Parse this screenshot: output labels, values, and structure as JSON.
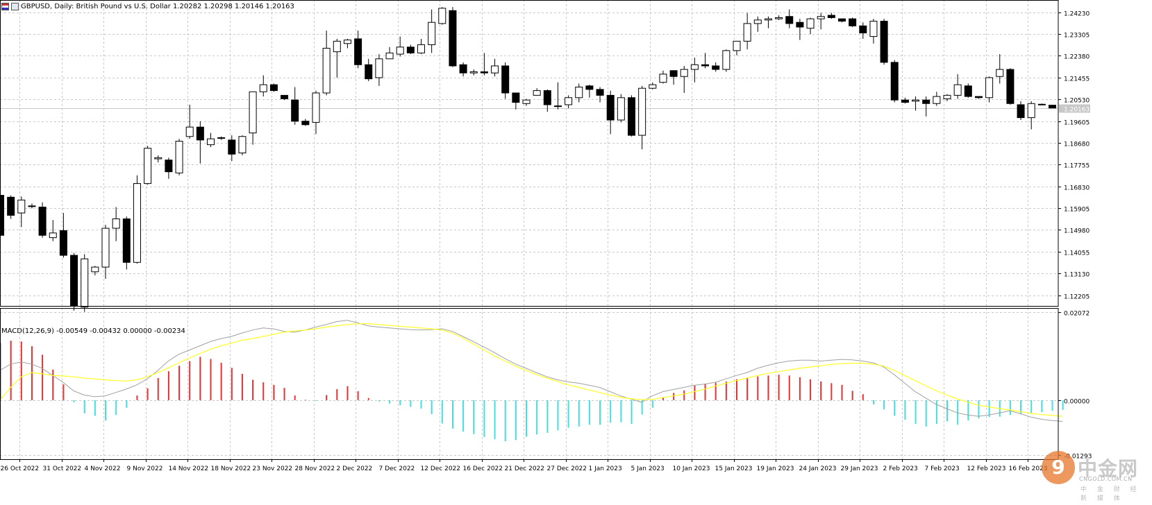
{
  "window": {
    "title": "GBPUSD, Daily:  British Pound vs U.S. Dollar  1.20282 1.20298 1.20146 1.20163",
    "symbol_icon": "currency-pair-icon",
    "chart_icon": "chart-window-icon"
  },
  "price_panel": {
    "y_axis_ticks": [
      "1.24230",
      "1.23305",
      "1.22380",
      "1.21455",
      "1.20530",
      "1.19605",
      "1.18680",
      "1.17755",
      "1.16830",
      "1.15905",
      "1.14980",
      "1.14055",
      "1.13130",
      "1.12205"
    ],
    "current_price_label": "1.20163"
  },
  "macd_panel": {
    "label": "MACD(12,26,9) -0.00549 -0.00432 0.00000 -0.00234",
    "y_axis_ticks": [
      "0.02072",
      "0.00000",
      "-0.01293"
    ]
  },
  "x_axis": {
    "date_labels": [
      "26 Oct 2022",
      "31 Oct 2022",
      "4 Nov 2022",
      "9 Nov 2022",
      "14 Nov 2022",
      "18 Nov 2022",
      "23 Nov 2022",
      "28 Nov 2022",
      "2 Dec 2022",
      "7 Dec 2022",
      "12 Dec 2022",
      "16 Dec 2022",
      "21 Dec 2022",
      "27 Dec 2022",
      "1 Jan 2023",
      "5 Jan 2023",
      "10 Jan 2023",
      "15 Jan 2023",
      "19 Jan 2023",
      "24 Jan 2023",
      "29 Jan 2023",
      "2 Feb 2023",
      "7 Feb 2023",
      "12 Feb 2023",
      "16 Feb 2023"
    ]
  },
  "watermark": {
    "logo_glyph": "9",
    "brand": "中金网",
    "domain": "CNGOLD.COM.CN",
    "tagline": "中 金 财 经 新 媒 体"
  },
  "colors": {
    "bull_fill": "#ffffff",
    "bear_fill": "#000000",
    "macd_hist_pos": "#e83030",
    "macd_hist_neg": "#44dde0",
    "macd_line": "#a0a0a0",
    "signal_line": "#ffff20",
    "grid": "#c8c8c8"
  },
  "chart_data": {
    "type": "candlestick",
    "title": "GBPUSD, Daily",
    "ylim": [
      1.1175,
      1.2475
    ],
    "candles": [
      {
        "o": 1.1645,
        "h": 1.1647,
        "l": 1.1475,
        "c": 1.1475
      },
      {
        "o": 1.1637,
        "h": 1.1645,
        "l": 1.1545,
        "c": 1.156
      },
      {
        "o": 1.157,
        "h": 1.164,
        "l": 1.151,
        "c": 1.1625
      },
      {
        "o": 1.1597,
        "h": 1.161,
        "l": 1.159,
        "c": 1.16
      },
      {
        "o": 1.1595,
        "h": 1.1615,
        "l": 1.1465,
        "c": 1.1475
      },
      {
        "o": 1.1465,
        "h": 1.154,
        "l": 1.145,
        "c": 1.1485
      },
      {
        "o": 1.1495,
        "h": 1.157,
        "l": 1.138,
        "c": 1.139
      },
      {
        "o": 1.139,
        "h": 1.14,
        "l": 1.1155,
        "c": 1.1175
      },
      {
        "o": 1.117,
        "h": 1.1395,
        "l": 1.115,
        "c": 1.1375
      },
      {
        "o": 1.132,
        "h": 1.1345,
        "l": 1.1305,
        "c": 1.134
      },
      {
        "o": 1.134,
        "h": 1.152,
        "l": 1.129,
        "c": 1.1505
      },
      {
        "o": 1.1505,
        "h": 1.1595,
        "l": 1.145,
        "c": 1.1545
      },
      {
        "o": 1.1545,
        "h": 1.1555,
        "l": 1.133,
        "c": 1.136
      },
      {
        "o": 1.136,
        "h": 1.173,
        "l": 1.1355,
        "c": 1.1695
      },
      {
        "o": 1.1695,
        "h": 1.1855,
        "l": 1.169,
        "c": 1.1845
      },
      {
        "o": 1.18,
        "h": 1.1815,
        "l": 1.1785,
        "c": 1.1805
      },
      {
        "o": 1.1795,
        "h": 1.1805,
        "l": 1.1715,
        "c": 1.1745
      },
      {
        "o": 1.174,
        "h": 1.1885,
        "l": 1.173,
        "c": 1.1875
      },
      {
        "o": 1.1895,
        "h": 1.203,
        "l": 1.1885,
        "c": 1.1935
      },
      {
        "o": 1.1935,
        "h": 1.196,
        "l": 1.178,
        "c": 1.188
      },
      {
        "o": 1.186,
        "h": 1.191,
        "l": 1.185,
        "c": 1.1885
      },
      {
        "o": 1.189,
        "h": 1.1895,
        "l": 1.188,
        "c": 1.189
      },
      {
        "o": 1.188,
        "h": 1.19,
        "l": 1.179,
        "c": 1.182
      },
      {
        "o": 1.1825,
        "h": 1.19,
        "l": 1.1815,
        "c": 1.1895
      },
      {
        "o": 1.191,
        "h": 1.2085,
        "l": 1.186,
        "c": 1.2085
      },
      {
        "o": 1.2085,
        "h": 1.2155,
        "l": 1.2065,
        "c": 1.2115
      },
      {
        "o": 1.2115,
        "h": 1.212,
        "l": 1.2085,
        "c": 1.209
      },
      {
        "o": 1.207,
        "h": 1.207,
        "l": 1.205,
        "c": 1.2055
      },
      {
        "o": 1.205,
        "h": 1.2105,
        "l": 1.1945,
        "c": 1.196
      },
      {
        "o": 1.196,
        "h": 1.197,
        "l": 1.194,
        "c": 1.1945
      },
      {
        "o": 1.1955,
        "h": 1.209,
        "l": 1.1905,
        "c": 1.208
      },
      {
        "o": 1.208,
        "h": 1.2345,
        "l": 1.207,
        "c": 1.227
      },
      {
        "o": 1.2255,
        "h": 1.231,
        "l": 1.2145,
        "c": 1.23
      },
      {
        "o": 1.229,
        "h": 1.231,
        "l": 1.227,
        "c": 1.2305
      },
      {
        "o": 1.231,
        "h": 1.2345,
        "l": 1.2185,
        "c": 1.22
      },
      {
        "o": 1.22,
        "h": 1.2225,
        "l": 1.213,
        "c": 1.214
      },
      {
        "o": 1.2145,
        "h": 1.2245,
        "l": 1.211,
        "c": 1.2225
      },
      {
        "o": 1.2225,
        "h": 1.2275,
        "l": 1.2225,
        "c": 1.225
      },
      {
        "o": 1.2245,
        "h": 1.232,
        "l": 1.2235,
        "c": 1.2275
      },
      {
        "o": 1.2275,
        "h": 1.2285,
        "l": 1.2245,
        "c": 1.225
      },
      {
        "o": 1.225,
        "h": 1.231,
        "l": 1.2245,
        "c": 1.2285
      },
      {
        "o": 1.2285,
        "h": 1.2435,
        "l": 1.225,
        "c": 1.238
      },
      {
        "o": 1.2375,
        "h": 1.2445,
        "l": 1.237,
        "c": 1.244
      },
      {
        "o": 1.243,
        "h": 1.2445,
        "l": 1.219,
        "c": 1.2195
      },
      {
        "o": 1.22,
        "h": 1.221,
        "l": 1.215,
        "c": 1.2165
      },
      {
        "o": 1.2165,
        "h": 1.218,
        "l": 1.2155,
        "c": 1.217
      },
      {
        "o": 1.217,
        "h": 1.225,
        "l": 1.2155,
        "c": 1.2165
      },
      {
        "o": 1.2165,
        "h": 1.2225,
        "l": 1.215,
        "c": 1.2195
      },
      {
        "o": 1.2195,
        "h": 1.221,
        "l": 1.2055,
        "c": 1.208
      },
      {
        "o": 1.208,
        "h": 1.208,
        "l": 1.201,
        "c": 1.204
      },
      {
        "o": 1.2035,
        "h": 1.2055,
        "l": 1.2025,
        "c": 1.205
      },
      {
        "o": 1.207,
        "h": 1.21,
        "l": 1.207,
        "c": 1.209
      },
      {
        "o": 1.209,
        "h": 1.2095,
        "l": 1.2,
        "c": 1.203
      },
      {
        "o": 1.2025,
        "h": 1.2125,
        "l": 1.201,
        "c": 1.2025
      },
      {
        "o": 1.203,
        "h": 1.207,
        "l": 1.2015,
        "c": 1.206
      },
      {
        "o": 1.206,
        "h": 1.212,
        "l": 1.204,
        "c": 1.2105
      },
      {
        "o": 1.211,
        "h": 1.2115,
        "l": 1.206,
        "c": 1.2095
      },
      {
        "o": 1.2095,
        "h": 1.2105,
        "l": 1.204,
        "c": 1.207
      },
      {
        "o": 1.207,
        "h": 1.209,
        "l": 1.1905,
        "c": 1.1965
      },
      {
        "o": 1.1965,
        "h": 1.2075,
        "l": 1.1955,
        "c": 1.206
      },
      {
        "o": 1.206,
        "h": 1.207,
        "l": 1.1895,
        "c": 1.19
      },
      {
        "o": 1.19,
        "h": 1.211,
        "l": 1.184,
        "c": 1.21
      },
      {
        "o": 1.21,
        "h": 1.2125,
        "l": 1.2095,
        "c": 1.2115
      },
      {
        "o": 1.2125,
        "h": 1.2175,
        "l": 1.212,
        "c": 1.216
      },
      {
        "o": 1.2175,
        "h": 1.2175,
        "l": 1.2115,
        "c": 1.215
      },
      {
        "o": 1.215,
        "h": 1.2195,
        "l": 1.208,
        "c": 1.218
      },
      {
        "o": 1.218,
        "h": 1.223,
        "l": 1.2125,
        "c": 1.22
      },
      {
        "o": 1.22,
        "h": 1.225,
        "l": 1.2185,
        "c": 1.2195
      },
      {
        "o": 1.2195,
        "h": 1.221,
        "l": 1.217,
        "c": 1.218
      },
      {
        "o": 1.218,
        "h": 1.2265,
        "l": 1.217,
        "c": 1.226
      },
      {
        "o": 1.226,
        "h": 1.23,
        "l": 1.224,
        "c": 1.23
      },
      {
        "o": 1.23,
        "h": 1.242,
        "l": 1.2265,
        "c": 1.2375
      },
      {
        "o": 1.2375,
        "h": 1.2405,
        "l": 1.234,
        "c": 1.239
      },
      {
        "o": 1.239,
        "h": 1.2405,
        "l": 1.2355,
        "c": 1.2395
      },
      {
        "o": 1.2395,
        "h": 1.241,
        "l": 1.239,
        "c": 1.24
      },
      {
        "o": 1.2405,
        "h": 1.2435,
        "l": 1.2355,
        "c": 1.2375
      },
      {
        "o": 1.238,
        "h": 1.2395,
        "l": 1.2305,
        "c": 1.236
      },
      {
        "o": 1.2355,
        "h": 1.24,
        "l": 1.233,
        "c": 1.2395
      },
      {
        "o": 1.2395,
        "h": 1.242,
        "l": 1.235,
        "c": 1.2405
      },
      {
        "o": 1.241,
        "h": 1.242,
        "l": 1.2395,
        "c": 1.24
      },
      {
        "o": 1.2395,
        "h": 1.2395,
        "l": 1.238,
        "c": 1.2385
      },
      {
        "o": 1.2395,
        "h": 1.24,
        "l": 1.236,
        "c": 1.2365
      },
      {
        "o": 1.2365,
        "h": 1.238,
        "l": 1.231,
        "c": 1.2335
      },
      {
        "o": 1.232,
        "h": 1.2395,
        "l": 1.229,
        "c": 1.2385
      },
      {
        "o": 1.2385,
        "h": 1.2395,
        "l": 1.22,
        "c": 1.221
      },
      {
        "o": 1.221,
        "h": 1.222,
        "l": 1.204,
        "c": 1.205
      },
      {
        "o": 1.205,
        "h": 1.206,
        "l": 1.2035,
        "c": 1.204
      },
      {
        "o": 1.2045,
        "h": 1.2065,
        "l": 1.2005,
        "c": 1.205
      },
      {
        "o": 1.205,
        "h": 1.2065,
        "l": 1.198,
        "c": 1.2035
      },
      {
        "o": 1.2035,
        "h": 1.2085,
        "l": 1.2025,
        "c": 1.2065
      },
      {
        "o": 1.2055,
        "h": 1.2075,
        "l": 1.2045,
        "c": 1.207
      },
      {
        "o": 1.207,
        "h": 1.216,
        "l": 1.2055,
        "c": 1.2115
      },
      {
        "o": 1.211,
        "h": 1.212,
        "l": 1.206,
        "c": 1.2065
      },
      {
        "o": 1.2065,
        "h": 1.2065,
        "l": 1.2055,
        "c": 1.206
      },
      {
        "o": 1.206,
        "h": 1.215,
        "l": 1.204,
        "c": 1.2145
      },
      {
        "o": 1.215,
        "h": 1.2245,
        "l": 1.212,
        "c": 1.218
      },
      {
        "o": 1.218,
        "h": 1.2185,
        "l": 1.203,
        "c": 1.2035
      },
      {
        "o": 1.203,
        "h": 1.2045,
        "l": 1.1965,
        "c": 1.1975
      },
      {
        "o": 1.1975,
        "h": 1.2045,
        "l": 1.1925,
        "c": 1.2035
      },
      {
        "o": 1.203,
        "h": 1.2035,
        "l": 1.2028,
        "c": 1.2032
      },
      {
        "o": 1.2028,
        "h": 1.203,
        "l": 1.2015,
        "c": 1.2016
      }
    ],
    "macd_histogram": [
      0.0135,
      0.014,
      0.0138,
      0.0127,
      0.0107,
      0.0072,
      0.0037,
      -0.0005,
      -0.0031,
      -0.0037,
      -0.0048,
      -0.0035,
      -0.0018,
      0.0011,
      0.0028,
      0.0052,
      0.0068,
      0.0081,
      0.0092,
      0.0102,
      0.0097,
      0.0088,
      0.0076,
      0.0062,
      0.0048,
      0.0042,
      0.0036,
      0.0029,
      0.0011,
      0.0001,
      -0.0002,
      0.0012,
      0.0026,
      0.0033,
      0.0021,
      0.0005,
      -0.0003,
      -0.0008,
      -0.0012,
      -0.0016,
      -0.002,
      -0.0033,
      -0.0055,
      -0.0067,
      -0.0074,
      -0.008,
      -0.0087,
      -0.0092,
      -0.0097,
      -0.0094,
      -0.0086,
      -0.0081,
      -0.0077,
      -0.0071,
      -0.0065,
      -0.0062,
      -0.0058,
      -0.0058,
      -0.0053,
      -0.0052,
      -0.0056,
      -0.0034,
      -0.0018,
      0.0006,
      0.0017,
      0.0023,
      0.0034,
      0.0039,
      0.0041,
      0.0044,
      0.0049,
      0.0053,
      0.0056,
      0.0058,
      0.006,
      0.0058,
      0.0054,
      0.0049,
      0.0044,
      0.004,
      0.0036,
      0.0022,
      0.0014,
      -0.001,
      -0.0022,
      -0.0037,
      -0.0046,
      -0.0056,
      -0.0062,
      -0.0056,
      -0.005,
      -0.0058,
      -0.0048,
      -0.0043,
      -0.004,
      -0.0039,
      -0.0035,
      -0.0033,
      -0.003,
      -0.0028,
      -0.0025,
      -0.0023
    ],
    "macd_line": [
      0.007,
      0.0085,
      0.009,
      0.0085,
      0.0075,
      0.0058,
      0.0042,
      0.0022,
      0.0012,
      0.0008,
      0.001,
      0.0018,
      0.0026,
      0.0036,
      0.005,
      0.007,
      0.0092,
      0.0108,
      0.0118,
      0.0128,
      0.0138,
      0.0145,
      0.015,
      0.0158,
      0.0165,
      0.017,
      0.0168,
      0.0162,
      0.016,
      0.0165,
      0.0172,
      0.0178,
      0.0185,
      0.0188,
      0.0182,
      0.0175,
      0.0172,
      0.017,
      0.0168,
      0.0166,
      0.0165,
      0.0166,
      0.0168,
      0.0162,
      0.015,
      0.0138,
      0.0125,
      0.0112,
      0.0098,
      0.0085,
      0.0075,
      0.0065,
      0.0055,
      0.0048,
      0.0043,
      0.004,
      0.0035,
      0.003,
      0.002,
      0.001,
      0.0002,
      -0.0005,
      0.001,
      0.002,
      0.0025,
      0.003,
      0.0035,
      0.0038,
      0.0042,
      0.005,
      0.0058,
      0.0065,
      0.0075,
      0.0082,
      0.0088,
      0.0092,
      0.0094,
      0.0094,
      0.0092,
      0.0094,
      0.0096,
      0.0095,
      0.0092,
      0.0088,
      0.0078,
      0.006,
      0.004,
      0.002,
      0.0005,
      -0.001,
      -0.002,
      -0.003,
      -0.0035,
      -0.0038,
      -0.0035,
      -0.003,
      -0.0025,
      -0.0032,
      -0.004,
      -0.0045,
      -0.0048,
      -0.005
    ],
    "signal_line": [
      0.0,
      0.003,
      0.0055,
      0.0065,
      0.0062,
      0.0058,
      0.0057,
      0.0055,
      0.0052,
      0.005,
      0.0048,
      0.0046,
      0.0045,
      0.0048,
      0.0055,
      0.0065,
      0.0076,
      0.0088,
      0.0099,
      0.011,
      0.012,
      0.0128,
      0.0134,
      0.0141,
      0.0145,
      0.015,
      0.0155,
      0.016,
      0.0163,
      0.0165,
      0.0168,
      0.0172,
      0.0175,
      0.0178,
      0.018,
      0.018,
      0.0178,
      0.0176,
      0.0174,
      0.0172,
      0.017,
      0.0168,
      0.0165,
      0.0158,
      0.0146,
      0.0132,
      0.0118,
      0.0104,
      0.0092,
      0.008,
      0.007,
      0.006,
      0.0052,
      0.0044,
      0.0036,
      0.003,
      0.0024,
      0.0018,
      0.0012,
      0.0007,
      0.0003,
      0.0001,
      0.0002,
      0.0006,
      0.001,
      0.0014,
      0.002,
      0.0026,
      0.0033,
      0.004,
      0.0046,
      0.0052,
      0.0058,
      0.0063,
      0.0067,
      0.0071,
      0.0075,
      0.0078,
      0.0081,
      0.0084,
      0.0086,
      0.0087,
      0.0087,
      0.0085,
      0.008,
      0.007,
      0.0058,
      0.0046,
      0.0034,
      0.0022,
      0.0012,
      0.0003,
      -0.0005,
      -0.0012,
      -0.0016,
      -0.002,
      -0.0023,
      -0.0027,
      -0.0031,
      -0.0034,
      -0.0036,
      -0.0038
    ],
    "macd_ylim": [
      -0.01293,
      0.02072
    ]
  }
}
